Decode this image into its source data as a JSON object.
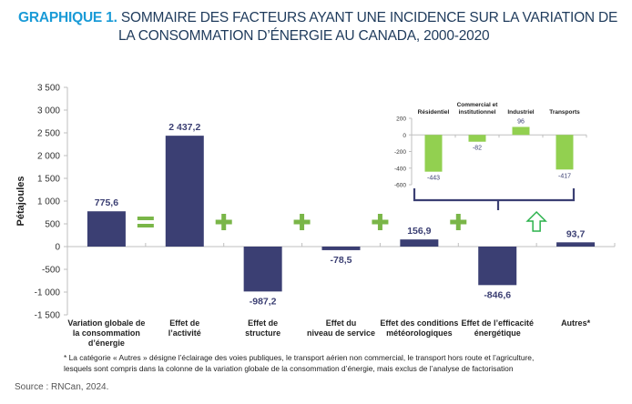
{
  "title": {
    "prefix": "GRAPHIQUE 1.",
    "line1": "SOMMAIRE DES FACTEURS AYANT UNE INCIDENCE SUR LA VARIATION DE",
    "line2": "LA CONSOMMATION D’ÉNERGIE AU CANADA, 2000-2020"
  },
  "colors": {
    "bar": "#3b3f73",
    "inset_bar": "#92d050",
    "operator": "#7ab648",
    "arrow": "#2bb24c",
    "title_prefix": "#1a9bd7"
  },
  "chart_data": [
    {
      "type": "bar",
      "title": "Sommaire des facteurs ayant une incidence sur la variation de la consommation d’énergie au Canada, 2000-2020",
      "xlabel": "",
      "ylabel": "Pétajoules",
      "ylim": [
        -1500,
        3500
      ],
      "yticks": [
        3500,
        3000,
        2500,
        2000,
        1500,
        1000,
        500,
        0,
        -500,
        -1000,
        -1500
      ],
      "ytick_labels": [
        "3 500",
        "3 000",
        "2 500",
        "2 000",
        "1 500",
        "1 000",
        "500",
        "0",
        "-500",
        "-1 000",
        "-1 500"
      ],
      "grid": false,
      "categories": [
        [
          "Variation globale de",
          "la consommation",
          "d’énergie"
        ],
        [
          "Effet de",
          "l’activité"
        ],
        [
          "Effet de",
          "structure"
        ],
        [
          "Effet du",
          "niveau de service"
        ],
        [
          "Effet des conditions",
          "météorologiques"
        ],
        [
          "Effet de l’efficacité",
          "énergétique"
        ],
        [
          "Autres*"
        ]
      ],
      "values": [
        775.6,
        2437.2,
        -987.2,
        -78.5,
        156.9,
        -846.6,
        93.7
      ],
      "value_labels": [
        "775,6",
        "2 437,2",
        "-987,2",
        "-78,5",
        "156,9",
        "-846,6",
        "93,7"
      ],
      "operators": [
        "=",
        "+",
        "+",
        "+",
        "+",
        "↑",
        "+"
      ]
    },
    {
      "type": "bar",
      "title": "",
      "detail_of": "Effet de l’efficacité énergétique",
      "ylim": [
        -600,
        200
      ],
      "yticks": [
        200,
        0,
        -200,
        -400,
        -600
      ],
      "ytick_labels": [
        "200",
        "0",
        "-200",
        "-400",
        "-600"
      ],
      "grid": false,
      "categories": [
        [
          "Résidentiel"
        ],
        [
          "Commercial et",
          "institutionnel"
        ],
        [
          "Industriel"
        ],
        [
          "Transports"
        ]
      ],
      "values": [
        -443,
        -82,
        96,
        -417
      ],
      "value_labels": [
        "-443",
        "-82",
        "96",
        "-417"
      ]
    }
  ],
  "footnote": {
    "line1": "* La catégorie « Autres » désigne l’éclairage des voies publiques, le transport aérien non commercial, le transport hors route et l’agriculture,",
    "line2": "lesquels sont compris dans la colonne de la variation globale de la consommation d’énergie, mais exclus de l’analyse de factorisation"
  },
  "source": "Source : RNCan, 2024."
}
